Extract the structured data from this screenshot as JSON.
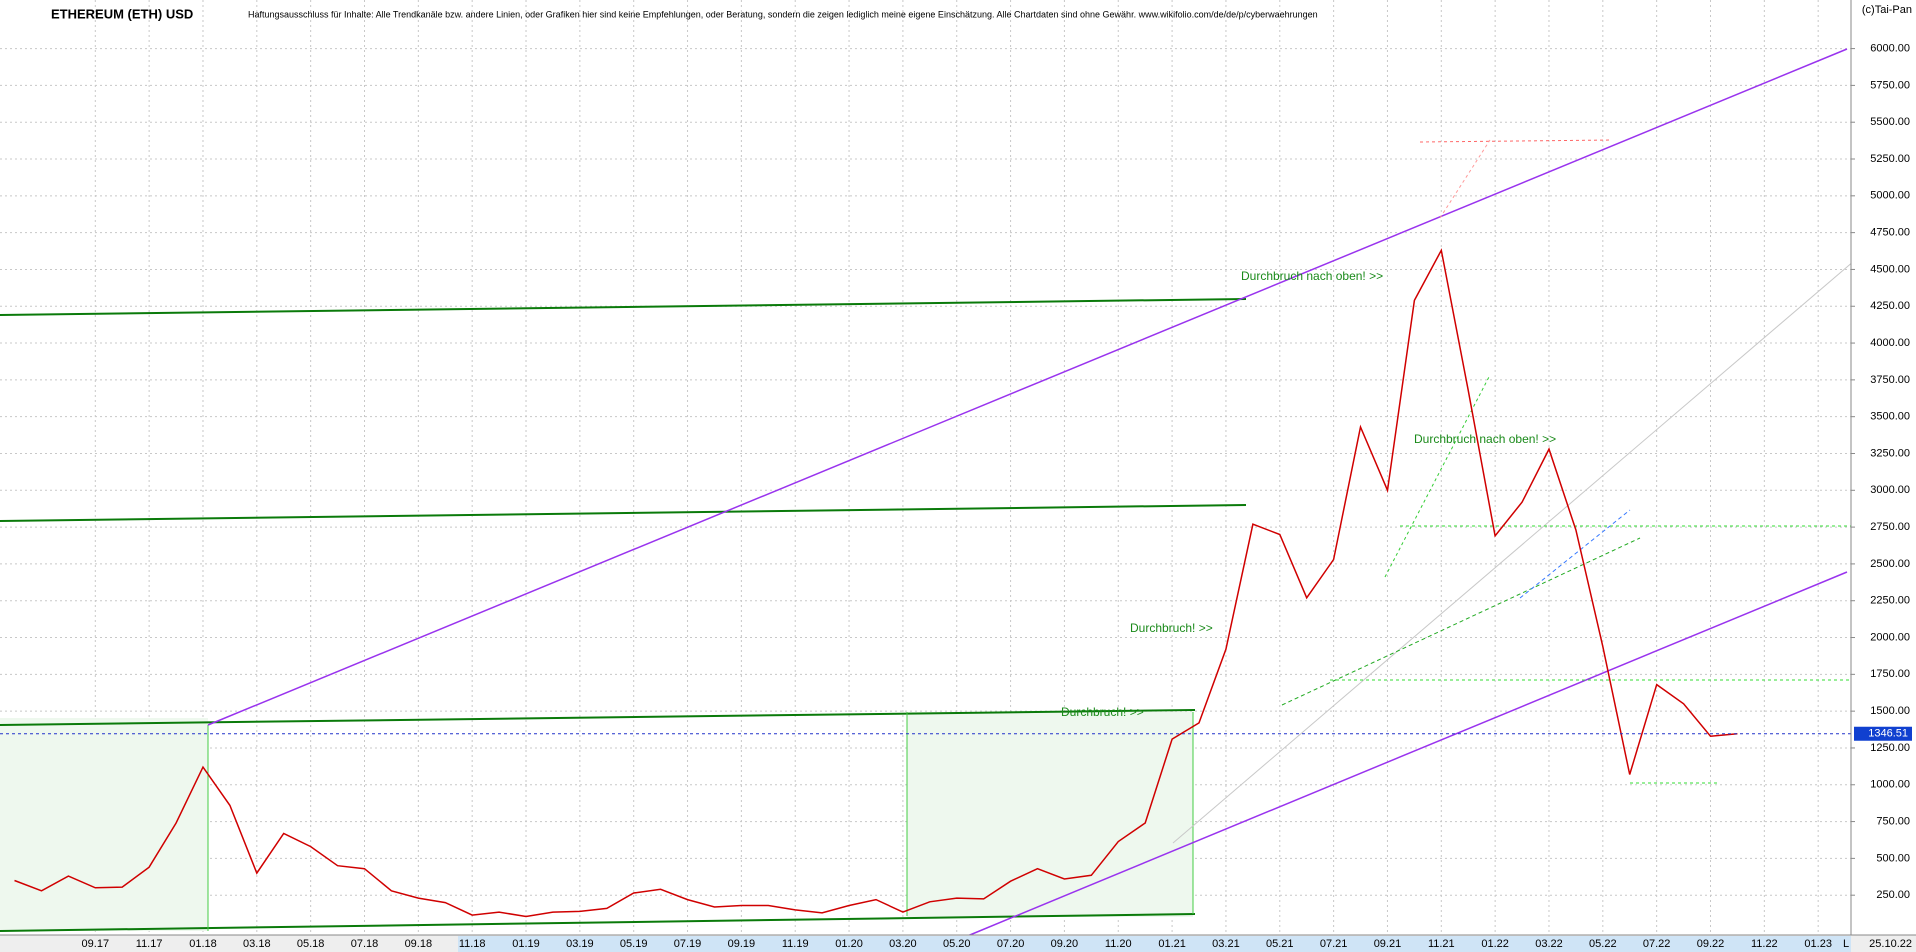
{
  "chart_data": {
    "type": "line",
    "title": "ETHEREUM (ETH) USD",
    "subtitle": "Haftungsausschluss für Inhalte: Alle Trendkanäle bzw. andere Linien, oder Grafiken hier sind keine Empfehlungen, oder Beratung, sondern die zeigen lediglich meine eigene Einschätzung. Alle Chartdaten sind ohne Gewähr.  www.wikifolio.com/de/de/p/cyberwaehrungen",
    "source": "(c)Tai-Pan",
    "date_label": "25.10.22",
    "scale_label": "L",
    "annotations": [
      "Durchbruch nach oben! >>",
      "Durchbruch nach oben! >>",
      "Durchbruch! >>",
      "Durchbruch! >>"
    ],
    "categories": [
      null,
      null,
      null,
      "09.17",
      null,
      "11.17",
      null,
      "01.18",
      null,
      "03.18",
      null,
      "05.18",
      null,
      "07.18",
      null,
      "09.18",
      null,
      "11.18",
      null,
      "01.19",
      null,
      "03.19",
      null,
      "05.19",
      null,
      "07.19",
      null,
      "09.19",
      null,
      "11.19",
      null,
      "01.20",
      null,
      "03.20",
      null,
      "05.20",
      null,
      "07.20",
      null,
      "09.20",
      null,
      "11.20",
      null,
      "01.21",
      null,
      "03.21",
      null,
      "05.21",
      null,
      "07.21",
      null,
      "09.21",
      null,
      "11.21",
      null,
      "01.22",
      null,
      "03.22",
      null,
      "05.22",
      null,
      "07.22",
      null,
      "09.22",
      null,
      "11.22",
      null,
      "01.23"
    ],
    "values": [
      350,
      280,
      380,
      300,
      305,
      440,
      740,
      1120,
      860,
      400,
      670,
      580,
      450,
      430,
      280,
      230,
      200,
      115,
      135,
      105,
      135,
      140,
      160,
      265,
      290,
      220,
      170,
      180,
      180,
      150,
      130,
      180,
      220,
      135,
      205,
      230,
      225,
      345,
      430,
      360,
      385,
      615,
      740,
      1310,
      1420,
      1920,
      2770,
      2700,
      2270,
      2530,
      3430,
      3000,
      4290,
      4630,
      3680,
      2690,
      2920,
      3280,
      2730,
      1940,
      1070,
      1680,
      1550,
      1330,
      1346.51,
      null,
      null,
      null
    ],
    "color": "#d00000",
    "last_value": 1346.51,
    "ylim": [
      0,
      6330
    ],
    "yticks": [
      {
        "value": 250,
        "label": "250.00"
      },
      {
        "value": 500,
        "label": "500.00"
      },
      {
        "value": 750,
        "label": "750.00"
      },
      {
        "value": 1000,
        "label": "1000.00"
      },
      {
        "value": 1250,
        "label": "1250.00"
      },
      {
        "value": 1500,
        "label": "1500.00"
      },
      {
        "value": 1750,
        "label": "1750.00"
      },
      {
        "value": 2000,
        "label": "2000.00"
      },
      {
        "value": 2250,
        "label": "2250.00"
      },
      {
        "value": 2500,
        "label": "2500.00"
      },
      {
        "value": 2750,
        "label": "2750.00"
      },
      {
        "value": 3000,
        "label": "3000.00"
      },
      {
        "value": 3250,
        "label": "3250.00"
      },
      {
        "value": 3500,
        "label": "3500.00"
      },
      {
        "value": 3750,
        "label": "3750.00"
      },
      {
        "value": 4000,
        "label": "4000.00"
      },
      {
        "value": 4250,
        "label": "4250.00"
      },
      {
        "value": 4500,
        "label": "4500.00"
      },
      {
        "value": 4750,
        "label": "4750.00"
      },
      {
        "value": 5000,
        "label": "5000.00"
      },
      {
        "value": 5250,
        "label": "5250.00"
      },
      {
        "value": 5500,
        "label": "5500.00"
      },
      {
        "value": 5750,
        "label": "5750.00"
      },
      {
        "value": 6000,
        "label": "6000.00"
      }
    ],
    "grid": true
  }
}
